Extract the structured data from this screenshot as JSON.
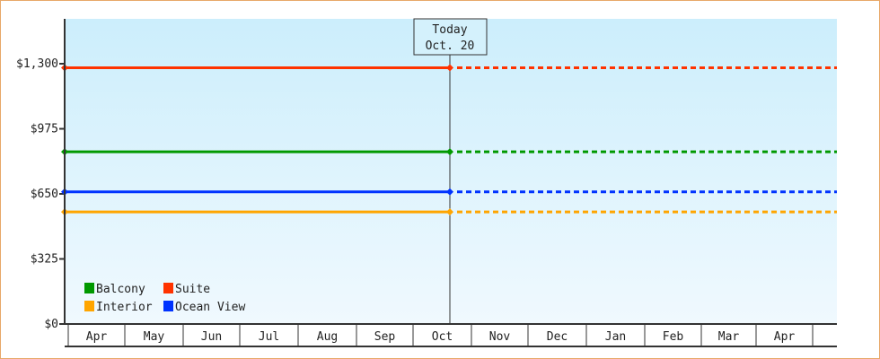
{
  "chart_data": {
    "type": "line",
    "today_label": [
      "Today",
      "Oct. 20"
    ],
    "x_ticks": [
      "Apr",
      "May",
      "Jun",
      "Jul",
      "Aug",
      "Sep",
      "Oct",
      "Nov",
      "Dec",
      "Jan",
      "Feb",
      "Mar",
      "Apr"
    ],
    "y_ticks": [
      {
        "value": 0,
        "label": "$0"
      },
      {
        "value": 325,
        "label": "$325"
      },
      {
        "value": 650,
        "label": "$650"
      },
      {
        "value": 975,
        "label": "$975"
      },
      {
        "value": 1300,
        "label": "$1,300"
      }
    ],
    "ylim": [
      0,
      1300
    ],
    "series": [
      {
        "name": "Suite",
        "color": "#ff3300",
        "value": 1280
      },
      {
        "name": "Balcony",
        "color": "#009900",
        "value": 860
      },
      {
        "name": "Ocean View",
        "color": "#0033ff",
        "value": 660
      },
      {
        "name": "Interior",
        "color": "#ffa500",
        "value": 560
      }
    ],
    "legend": [
      "Balcony",
      "Suite",
      "Interior",
      "Ocean View"
    ],
    "note": "Solid lines up to today, dotted lines after"
  }
}
